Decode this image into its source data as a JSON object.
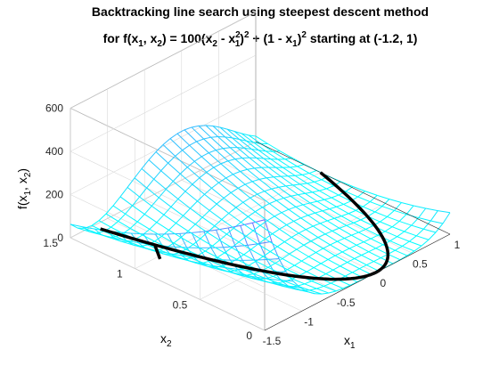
{
  "chart_data": {
    "type": "surface3d",
    "title_line1": "Backtracking line search using steepest descent method",
    "title_line2": {
      "p1": "for f(x",
      "s1": "1",
      "p2": ", x",
      "s2": "2",
      "p3": ") = 100(x",
      "s3": "2",
      "p4": " - x",
      "s4sup": "2",
      "s4sub": "1",
      "p5": ")",
      "s5": "2",
      "p6": " + (1 - x",
      "s6": "1",
      "p7": ")",
      "s7": "2",
      "p8": " starting at (-1.2, 1)"
    },
    "function": "100*(x2 - x1^2)^2 + (1 - x1)^2",
    "start_point": [
      -1.2,
      1
    ],
    "x1": {
      "label": "x",
      "sub": "1",
      "range": [
        -1.5,
        1
      ],
      "ticks": [
        "-1.5",
        "-1",
        "-0.5",
        "0",
        "0.5",
        "1"
      ]
    },
    "x2": {
      "label": "x",
      "sub": "2",
      "range": [
        0,
        1.5
      ],
      "ticks": [
        "0",
        "0.5",
        "1",
        "1.5"
      ]
    },
    "z": {
      "label_p1": "f(x",
      "label_s1": "1",
      "label_p2": ", x",
      "label_s2": "2",
      "label_p3": ")",
      "range": [
        0,
        600
      ],
      "ticks": [
        "0",
        "200",
        "400",
        "600"
      ]
    },
    "grid": true,
    "mesh_color_low": "#00ffff",
    "mesh_color_high": "#9b30ff",
    "path_color": "#000000"
  }
}
